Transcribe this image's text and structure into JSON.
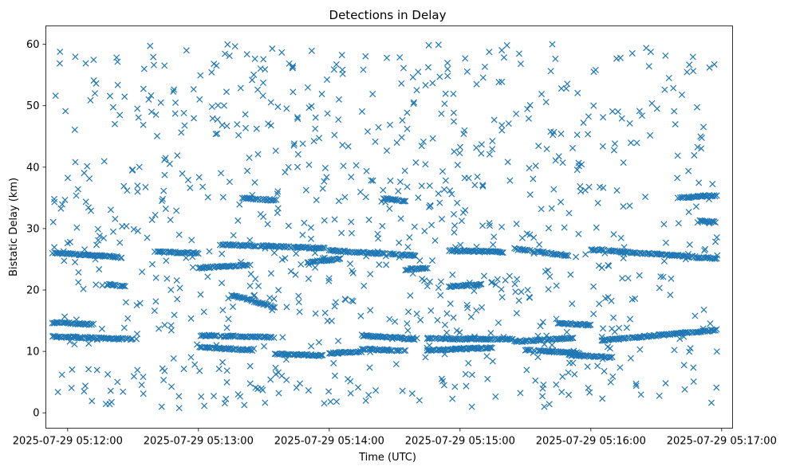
{
  "chart_data": {
    "type": "scatter",
    "title": "Detections in Delay",
    "xlabel": "Time (UTC)",
    "ylabel": "Bistatic Delay (km)",
    "x_ticks": [
      "2025-07-29 05:12:00",
      "2025-07-29 05:13:00",
      "2025-07-29 05:14:00",
      "2025-07-29 05:15:00",
      "2025-07-29 05:16:00",
      "2025-07-29 05:17:00"
    ],
    "y_ticks": [
      0,
      10,
      20,
      30,
      40,
      50,
      60
    ],
    "xlim": [
      "2025-07-29 05:11:50",
      "2025-07-29 05:17:05"
    ],
    "ylim": [
      -2.5,
      63
    ],
    "x_range": [
      "2025-07-29 05:11:53",
      "2025-07-29 05:16:58"
    ],
    "grid": false,
    "marker": "x",
    "color": "#1f77b4",
    "series": [
      {
        "points_note": "dense tracks",
        "tracks": [
          {
            "t": [
              "05:11:53",
              "05:12:10",
              "05:12:25"
            ],
            "y": [
              26.0,
              25.7,
              25.3
            ]
          },
          {
            "t": [
              "05:11:53",
              "05:12:12"
            ],
            "y": [
              14.7,
              14.4
            ]
          },
          {
            "t": [
              "05:11:53",
              "05:12:30"
            ],
            "y": [
              12.4,
              12.0
            ]
          },
          {
            "t": [
              "05:12:18",
              "05:12:27"
            ],
            "y": [
              20.9,
              20.6
            ]
          },
          {
            "t": [
              "05:12:40",
              "05:13:00"
            ],
            "y": [
              26.2,
              26.0
            ]
          },
          {
            "t": [
              "05:13:00",
              "05:13:25"
            ],
            "y": [
              23.6,
              24.1
            ]
          },
          {
            "t": [
              "05:13:20",
              "05:13:35"
            ],
            "y": [
              35.0,
              34.6
            ]
          },
          {
            "t": [
              "05:13:15",
              "05:13:35"
            ],
            "y": [
              19.2,
              17.2
            ]
          },
          {
            "t": [
              "05:13:10",
              "05:13:58"
            ],
            "y": [
              27.4,
              26.8
            ]
          },
          {
            "t": [
              "05:13:50",
              "05:14:05"
            ],
            "y": [
              24.5,
              25.1
            ]
          },
          {
            "t": [
              "05:13:00",
              "05:13:35"
            ],
            "y": [
              12.6,
              12.3
            ]
          },
          {
            "t": [
              "05:13:00",
              "05:13:25"
            ],
            "y": [
              10.7,
              10.2
            ]
          },
          {
            "t": [
              "05:13:35",
              "05:13:58"
            ],
            "y": [
              9.6,
              9.3
            ]
          },
          {
            "t": [
              "05:14:00",
              "05:14:15"
            ],
            "y": [
              9.7,
              10.0
            ]
          },
          {
            "t": [
              "05:14:00",
              "05:14:40"
            ],
            "y": [
              26.4,
              25.6
            ]
          },
          {
            "t": [
              "05:14:15",
              "05:14:40"
            ],
            "y": [
              12.6,
              12.0
            ]
          },
          {
            "t": [
              "05:14:15",
              "05:14:35"
            ],
            "y": [
              10.4,
              10.1
            ]
          },
          {
            "t": [
              "05:14:25",
              "05:14:35"
            ],
            "y": [
              34.9,
              34.5
            ]
          },
          {
            "t": [
              "05:14:35",
              "05:14:45"
            ],
            "y": [
              23.3,
              23.6
            ]
          },
          {
            "t": [
              "05:14:45",
              "05:15:25"
            ],
            "y": [
              12.1,
              12.0
            ]
          },
          {
            "t": [
              "05:14:45",
              "05:15:15"
            ],
            "y": [
              10.2,
              10.6
            ]
          },
          {
            "t": [
              "05:14:55",
              "05:15:10"
            ],
            "y": [
              20.6,
              20.9
            ]
          },
          {
            "t": [
              "05:14:55",
              "05:15:20"
            ],
            "y": [
              26.4,
              26.2
            ]
          },
          {
            "t": [
              "05:15:25",
              "05:15:50"
            ],
            "y": [
              26.7,
              25.6
            ]
          },
          {
            "t": [
              "05:15:25",
              "05:15:52"
            ],
            "y": [
              11.6,
              12.2
            ]
          },
          {
            "t": [
              "05:15:30",
              "05:15:55"
            ],
            "y": [
              10.2,
              9.7
            ]
          },
          {
            "t": [
              "05:15:45",
              "05:16:00"
            ],
            "y": [
              14.6,
              14.3
            ]
          },
          {
            "t": [
              "05:15:50",
              "05:16:10"
            ],
            "y": [
              9.4,
              9.0
            ]
          },
          {
            "t": [
              "05:16:00",
              "05:16:58"
            ],
            "y": [
              26.6,
              25.1
            ]
          },
          {
            "t": [
              "05:16:05",
              "05:16:58"
            ],
            "y": [
              11.8,
              13.5
            ]
          },
          {
            "t": [
              "05:16:40",
              "05:16:58"
            ],
            "y": [
              35.0,
              35.4
            ]
          },
          {
            "t": [
              "05:16:50",
              "05:16:58"
            ],
            "y": [
              31.2,
              31.1
            ]
          }
        ],
        "scatter_range_y": [
          0.5,
          60
        ],
        "scatter_count_approx": 900
      }
    ]
  }
}
